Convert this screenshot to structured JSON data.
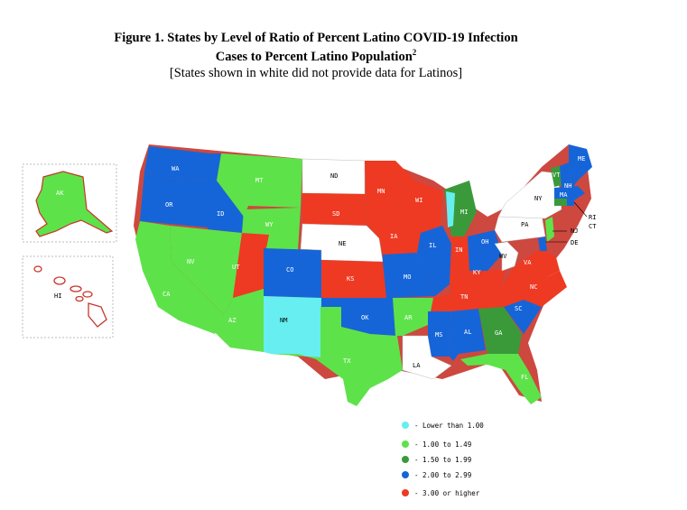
{
  "title_line1": "Figure 1. States by Level of Ratio of Percent Latino COVID-19 Infection",
  "title_line2": "Cases to Percent Latino Population",
  "title_sup": "2",
  "subtitle": "[States shown in white did not provide data for Latinos]",
  "colors": {
    "lower": "#66eef0",
    "c1": "#5ee24a",
    "c2": "#3a9a3a",
    "c3": "#1565d8",
    "c4": "#ee3a22",
    "none": "#ffffff"
  },
  "legend": [
    {
      "label": "- Lower than 1.00",
      "color": "#66eef0"
    },
    {
      "label": "- 1.00 to 1.49",
      "color": "#5ee24a"
    },
    {
      "label": "- 1.50 to 1.99",
      "color": "#3a9a3a"
    },
    {
      "label": "- 2.00 to 2.99",
      "color": "#1565d8"
    },
    {
      "label": "- 3.00 or higher",
      "color": "#ee3a22"
    }
  ],
  "states": {
    "WA": "WA",
    "OR": "OR",
    "CA": "CA",
    "ID": "ID",
    "NV": "NV",
    "MT": "MT",
    "WY": "WY",
    "UT": "UT",
    "AZ": "AZ",
    "CO": "CO",
    "NM": "NM",
    "ND": "ND",
    "SD": "SD",
    "NE": "NE",
    "KS": "KS",
    "OK": "OK",
    "TX": "TX",
    "MN": "MN",
    "IA": "IA",
    "MO": "MO",
    "AR": "AR",
    "LA": "LA",
    "WI": "WI",
    "IL": "IL",
    "MI": "MI",
    "IN": "IN",
    "OH": "OH",
    "KY": "KY",
    "TN": "TN",
    "MS": "MS",
    "AL": "AL",
    "GA": "GA",
    "FL": "FL",
    "SC": "SC",
    "NC": "NC",
    "VA": "VA",
    "WV": "WV",
    "PA": "PA",
    "NY": "NY",
    "VT": "VT",
    "NH": "NH",
    "ME": "ME",
    "MA": "MA",
    "NJ": "NJ",
    "DE": "DE",
    "RI": "RI",
    "CT": "CT",
    "AK": "AK",
    "HI": "HI"
  }
}
